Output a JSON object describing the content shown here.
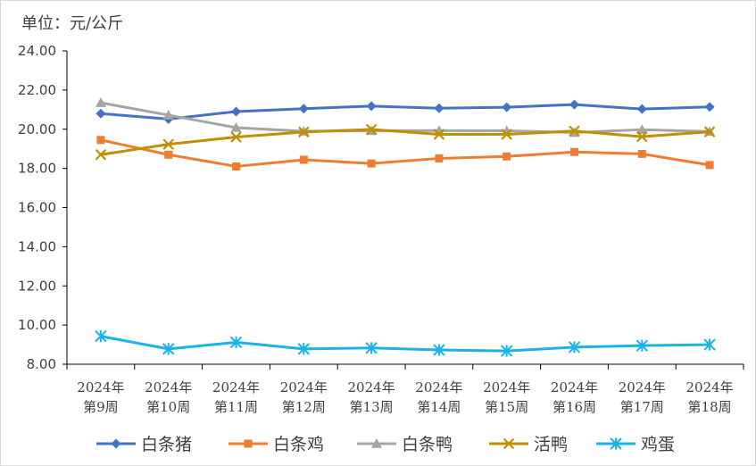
{
  "chart_data": {
    "type": "line",
    "unit_label": "单位：元/公斤",
    "ylim": [
      8,
      24
    ],
    "y_ticks": [
      "24.00",
      "22.00",
      "20.00",
      "18.00",
      "16.00",
      "14.00",
      "12.00",
      "10.00",
      "8.00"
    ],
    "y_tick_values": [
      24,
      22,
      20,
      18,
      16,
      14,
      12,
      10,
      8
    ],
    "categories": [
      [
        "2024年",
        "第9周"
      ],
      [
        "2024年",
        "第10周"
      ],
      [
        "2024年",
        "第11周"
      ],
      [
        "2024年",
        "第12周"
      ],
      [
        "2024年",
        "第13周"
      ],
      [
        "2024年",
        "第14周"
      ],
      [
        "2024年",
        "第15周"
      ],
      [
        "2024年",
        "第16周"
      ],
      [
        "2024年",
        "第17周"
      ],
      [
        "2024年",
        "第18周"
      ]
    ],
    "grid": false,
    "legend_position": "bottom",
    "series": [
      {
        "name": "白条猪",
        "color": "#4472C4",
        "marker": "diamond",
        "values": [
          20.8,
          20.52,
          20.9,
          21.05,
          21.18,
          21.07,
          21.12,
          21.26,
          21.03,
          21.14
        ]
      },
      {
        "name": "白条鸡",
        "color": "#ED7D31",
        "marker": "square",
        "values": [
          19.45,
          18.7,
          18.1,
          18.44,
          18.25,
          18.51,
          18.61,
          18.84,
          18.74,
          18.17
        ]
      },
      {
        "name": "白条鸭",
        "color": "#A5A5A5",
        "marker": "triangle",
        "values": [
          21.35,
          20.72,
          20.08,
          19.9,
          19.92,
          19.93,
          19.92,
          19.83,
          19.98,
          19.88
        ]
      },
      {
        "name": "活鸭",
        "color": "#BF9000",
        "marker": "x",
        "values": [
          18.7,
          19.23,
          19.6,
          19.86,
          19.99,
          19.74,
          19.74,
          19.91,
          19.62,
          19.87
        ]
      },
      {
        "name": "鸡蛋",
        "color": "#1AB3E8",
        "marker": "star",
        "values": [
          9.43,
          8.78,
          9.12,
          8.78,
          8.83,
          8.73,
          8.68,
          8.87,
          8.95,
          9.0
        ]
      }
    ]
  }
}
